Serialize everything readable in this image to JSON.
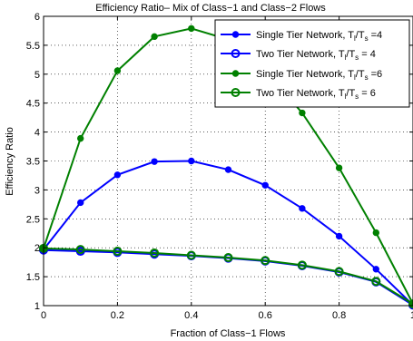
{
  "chart_data": {
    "type": "line",
    "title": "Efficiency Ratio– Mix of Class−1 and Class−2 Flows",
    "xlabel": "Fraction of Class−1 Flows",
    "ylabel": "Efficiency Ratio",
    "xlim": [
      0,
      1
    ],
    "ylim": [
      1,
      6
    ],
    "xticks": [
      0,
      0.2,
      0.4,
      0.6,
      0.8,
      1
    ],
    "xtick_labels": [
      "0",
      "0.2",
      "0.4",
      "0.6",
      "0.8",
      "1"
    ],
    "yticks": [
      1,
      1.5,
      2,
      2.5,
      3,
      3.5,
      4,
      4.5,
      5,
      5.5,
      6
    ],
    "ytick_labels": [
      "1",
      "1.5",
      "2",
      "2.5",
      "3",
      "3.5",
      "4",
      "4.5",
      "5",
      "5.5",
      "6"
    ],
    "grid": true,
    "legend_position": "top-right",
    "x": [
      0,
      0.1,
      0.2,
      0.3,
      0.4,
      0.5,
      0.6,
      0.7,
      0.8,
      0.9,
      1.0
    ],
    "series": [
      {
        "name": "Single Tier Network, T",
        "legend": {
          "main": "Single Tier Network, T",
          "sub1": "l",
          "mid": "/T",
          "sub2": "s",
          "tail": " =4"
        },
        "color": "#0000ff",
        "marker": "filled",
        "values": [
          1.97,
          2.78,
          3.26,
          3.49,
          3.5,
          3.35,
          3.08,
          2.68,
          2.2,
          1.63,
          1.01
        ]
      },
      {
        "name": "Two Tier Network, T",
        "legend": {
          "main": "Two Tier Network, T",
          "sub1": "l",
          "mid": "/T",
          "sub2": "s",
          "tail": " = 4"
        },
        "color": "#0000ff",
        "marker": "open",
        "values": [
          1.96,
          1.94,
          1.92,
          1.89,
          1.86,
          1.82,
          1.77,
          1.69,
          1.58,
          1.41,
          1.01
        ]
      },
      {
        "name": "Single Tier Network, T",
        "legend": {
          "main": "Single Tier Network, T",
          "sub1": "l",
          "mid": "/T",
          "sub2": "s",
          "tail": " =6"
        },
        "color": "#008000",
        "marker": "filled",
        "values": [
          1.99,
          3.89,
          5.06,
          5.65,
          5.79,
          5.6,
          5.08,
          4.33,
          3.38,
          2.26,
          1.03
        ]
      },
      {
        "name": "Two Tier Network, T",
        "legend": {
          "main": "Two Tier Network, T",
          "sub1": "l",
          "mid": "/T",
          "sub2": "s",
          "tail": " = 6"
        },
        "color": "#008000",
        "marker": "open",
        "values": [
          1.99,
          1.97,
          1.94,
          1.91,
          1.87,
          1.83,
          1.78,
          1.7,
          1.59,
          1.42,
          1.03
        ]
      }
    ]
  }
}
